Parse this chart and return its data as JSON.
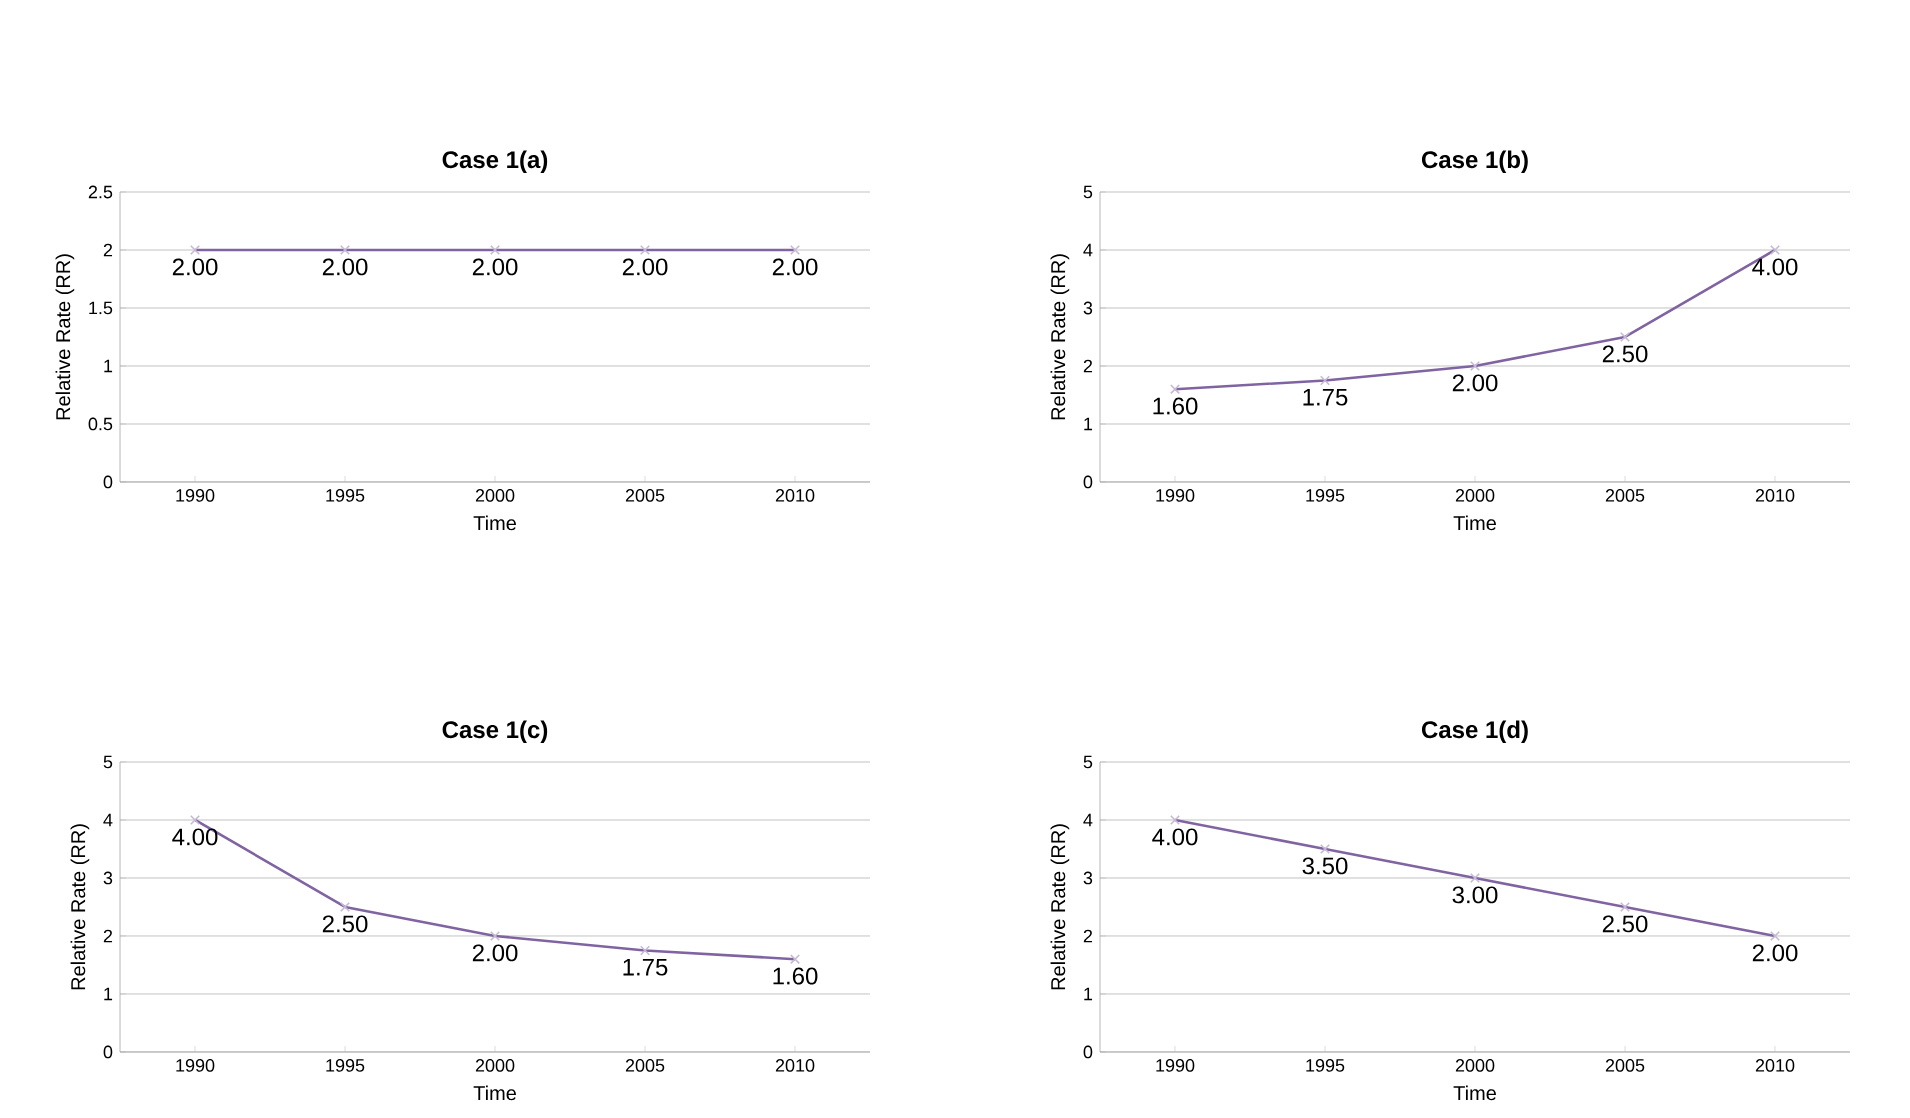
{
  "chart_data": [
    {
      "type": "line",
      "title": "Case 1(a)",
      "xlabel": "Time",
      "ylabel": "Relative Rate (RR)",
      "categories": [
        "1990",
        "1995",
        "2000",
        "2005",
        "2010"
      ],
      "ylim": [
        0,
        2.5
      ],
      "yticks": [
        0,
        0.5,
        1,
        1.5,
        2,
        2.5
      ],
      "grid": "y",
      "marker": "cross",
      "series": [
        {
          "color": "#8064a2",
          "values": [
            2,
            2,
            2,
            2,
            2
          ],
          "value_labels": [
            "2.00",
            "2.00",
            "2.00",
            "2.00",
            "2.00"
          ]
        }
      ]
    },
    {
      "type": "line",
      "title": "Case 1(b)",
      "xlabel": "Time",
      "ylabel": "Relative Rate (RR)",
      "categories": [
        "1990",
        "1995",
        "2000",
        "2005",
        "2010"
      ],
      "ylim": [
        0,
        5
      ],
      "yticks": [
        0,
        1,
        2,
        3,
        4,
        5
      ],
      "grid": "y",
      "marker": "cross",
      "series": [
        {
          "color": "#8064a2",
          "values": [
            1.6,
            1.75,
            2,
            2.5,
            4
          ],
          "value_labels": [
            "1.60",
            "1.75",
            "2.00",
            "2.50",
            "4.00"
          ]
        }
      ]
    },
    {
      "type": "line",
      "title": "Case 1(c)",
      "xlabel": "Time",
      "ylabel": "Relative Rate (RR)",
      "categories": [
        "1990",
        "1995",
        "2000",
        "2005",
        "2010"
      ],
      "ylim": [
        0,
        5
      ],
      "yticks": [
        0,
        1,
        2,
        3,
        4,
        5
      ],
      "grid": "y",
      "marker": "cross",
      "series": [
        {
          "color": "#8064a2",
          "values": [
            4,
            2.5,
            2,
            1.75,
            1.6
          ],
          "value_labels": [
            "4.00",
            "2.50",
            "2.00",
            "1.75",
            "1.60"
          ]
        }
      ]
    },
    {
      "type": "line",
      "title": "Case 1(d)",
      "xlabel": "Time",
      "ylabel": "Relative Rate (RR)",
      "categories": [
        "1990",
        "1995",
        "2000",
        "2005",
        "2010"
      ],
      "ylim": [
        0,
        5
      ],
      "yticks": [
        0,
        1,
        2,
        3,
        4,
        5
      ],
      "grid": "y",
      "marker": "cross",
      "series": [
        {
          "color": "#8064a2",
          "values": [
            4,
            3.5,
            3,
            2.5,
            2
          ],
          "value_labels": [
            "4.00",
            "3.50",
            "3.00",
            "2.50",
            "2.00"
          ]
        }
      ]
    }
  ]
}
